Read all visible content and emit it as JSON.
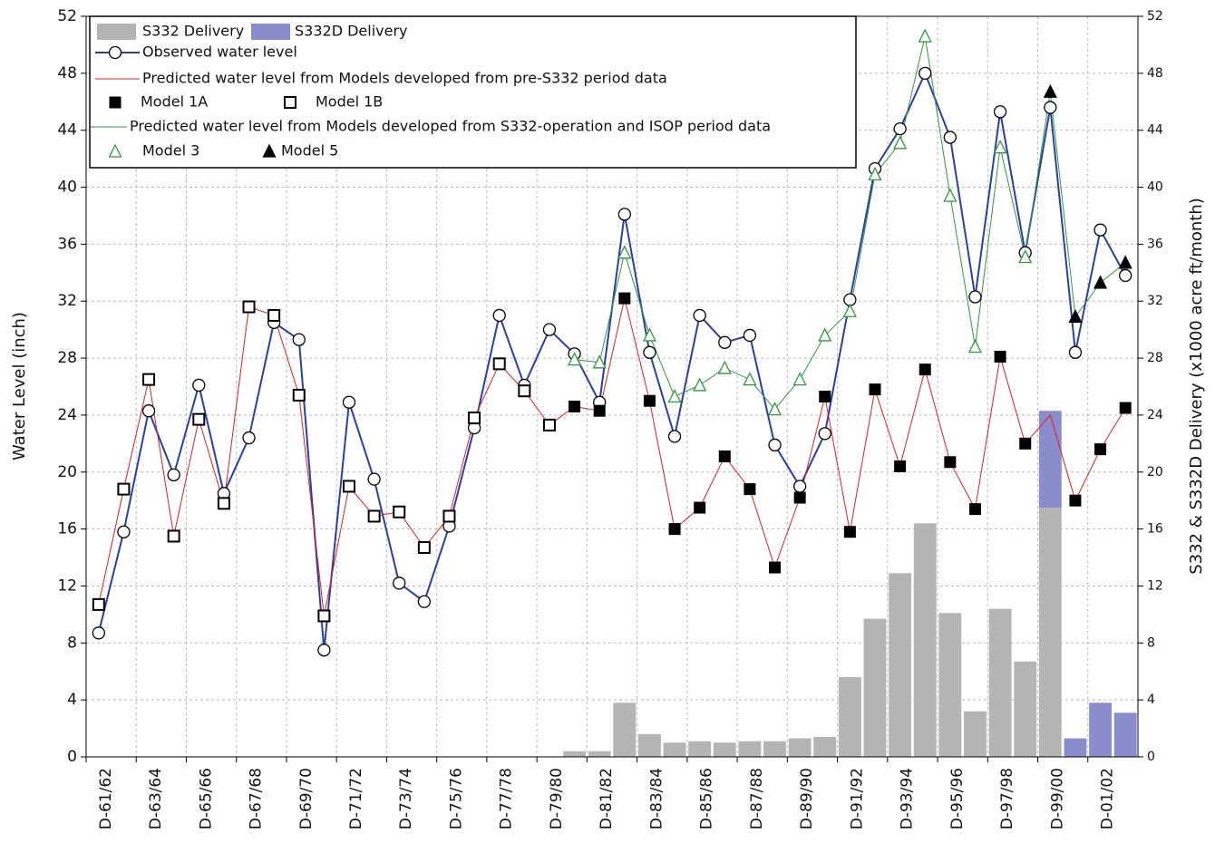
{
  "chart_data": {
    "type": "combo",
    "y_label": "Water Level (inch)",
    "y2_label": "S332 & S332D Delivery (x1000 acre ft/month)",
    "categories": [
      "D-61/62",
      null,
      "D-63/64",
      null,
      "D-65/66",
      null,
      "D-67/68",
      null,
      "D-69/70",
      null,
      "D-71/72",
      null,
      "D-73/74",
      null,
      "D-75/76",
      null,
      "D-77/78",
      null,
      "D-79/80",
      null,
      "D-81/82",
      null,
      "D-83/84",
      null,
      "D-85/86",
      null,
      "D-87/88",
      null,
      "D-89/90",
      null,
      "D-91/92",
      null,
      "D-93/94",
      null,
      "D-95/96",
      null,
      "D-97/98",
      null,
      "D-99/00",
      null,
      "D-01/02",
      null
    ],
    "ylim": [
      0,
      52
    ],
    "yticks": [
      0,
      4,
      8,
      12,
      16,
      20,
      24,
      28,
      32,
      36,
      40,
      44,
      48,
      52
    ],
    "y2lim": [
      0,
      52
    ],
    "y2ticks": [
      0,
      4,
      8,
      12,
      16,
      20,
      24,
      28,
      32,
      36,
      40,
      44,
      48,
      52
    ],
    "grid": true,
    "series": [
      {
        "name": "S332 Delivery",
        "type": "bar",
        "axis": "y2",
        "color": "#b4b4b4",
        "values": [
          null,
          null,
          null,
          null,
          null,
          null,
          null,
          null,
          null,
          null,
          null,
          null,
          null,
          null,
          null,
          null,
          null,
          null,
          null,
          0.4,
          0.4,
          3.8,
          1.6,
          1.0,
          1.1,
          1.0,
          1.1,
          1.1,
          1.3,
          1.4,
          5.6,
          9.7,
          12.9,
          16.4,
          10.1,
          3.2,
          10.4,
          6.7,
          17.5,
          null,
          null,
          null
        ]
      },
      {
        "name": "S332D Delivery",
        "type": "bar",
        "axis": "y2",
        "color": "#8a8ccc",
        "values": [
          null,
          null,
          null,
          null,
          null,
          null,
          null,
          null,
          null,
          null,
          null,
          null,
          null,
          null,
          null,
          null,
          null,
          null,
          null,
          null,
          null,
          null,
          null,
          null,
          null,
          null,
          null,
          null,
          null,
          null,
          null,
          null,
          null,
          null,
          null,
          null,
          null,
          null,
          6.8,
          1.3,
          3.8,
          3.1
        ]
      },
      {
        "name": "Observed water level",
        "type": "line",
        "marker": "circle",
        "color": "#2b3f9e",
        "values": [
          8.7,
          15.8,
          24.3,
          19.8,
          26.1,
          18.5,
          22.4,
          30.5,
          29.3,
          7.5,
          24.9,
          19.5,
          12.2,
          10.9,
          16.2,
          23.1,
          31.0,
          26.1,
          30.0,
          28.3,
          24.9,
          38.1,
          28.4,
          22.5,
          31.0,
          29.1,
          29.6,
          21.9,
          19.0,
          22.7,
          32.1,
          41.3,
          44.1,
          48.0,
          43.5,
          32.3,
          45.3,
          35.4,
          45.6,
          28.4,
          37.0,
          33.8
        ]
      },
      {
        "name": "Predicted water level from Models developed from pre-S332 period data",
        "type": "line",
        "color": "#e02020",
        "values": [
          10.7,
          18.8,
          26.5,
          15.5,
          23.7,
          17.8,
          31.6,
          31.0,
          25.4,
          9.9,
          19.0,
          16.9,
          17.2,
          14.7,
          16.9,
          23.8,
          27.6,
          25.7,
          23.3,
          24.6,
          24.3,
          32.2,
          25.0,
          16.0,
          17.5,
          21.1,
          18.8,
          13.3,
          18.2,
          25.3,
          15.8,
          25.8,
          20.4,
          27.2,
          20.7,
          17.4,
          28.1,
          22.0,
          24.0,
          18.0,
          21.6,
          24.5
        ]
      },
      {
        "name": "Model 1A",
        "type": "scatter",
        "marker": "square-filled",
        "color": "#000000",
        "values": [
          null,
          null,
          null,
          null,
          null,
          null,
          null,
          null,
          null,
          null,
          null,
          null,
          null,
          null,
          null,
          null,
          null,
          null,
          null,
          24.6,
          24.3,
          32.2,
          25.0,
          16.0,
          17.5,
          21.1,
          18.8,
          13.3,
          18.2,
          25.3,
          15.8,
          25.8,
          20.4,
          27.2,
          20.7,
          17.4,
          28.1,
          22.0,
          null,
          18.0,
          21.6,
          24.5
        ]
      },
      {
        "name": "Model 1B",
        "type": "scatter",
        "marker": "square-open",
        "color": "#000000",
        "values": [
          10.7,
          18.8,
          26.5,
          15.5,
          23.7,
          17.8,
          31.6,
          31.0,
          25.4,
          9.9,
          19.0,
          16.9,
          17.2,
          14.7,
          16.9,
          23.8,
          27.6,
          25.7,
          23.3,
          null,
          null,
          null,
          null,
          null,
          null,
          null,
          null,
          null,
          null,
          null,
          null,
          null,
          null,
          null,
          null,
          null,
          null,
          null,
          null,
          null,
          null,
          null
        ]
      },
      {
        "name": "Predicted water level from Models developed from S332-operation and ISOP period data",
        "type": "line",
        "color": "#2e9a3c",
        "values": [
          null,
          null,
          null,
          null,
          null,
          null,
          null,
          null,
          null,
          null,
          null,
          null,
          null,
          null,
          null,
          null,
          null,
          null,
          null,
          27.9,
          27.7,
          35.4,
          29.6,
          25.3,
          26.1,
          27.3,
          26.5,
          24.4,
          26.5,
          29.6,
          31.3,
          40.9,
          43.1,
          50.6,
          39.4,
          28.8,
          42.8,
          35.1,
          46.7,
          30.9,
          33.3,
          34.7
        ]
      },
      {
        "name": "Model 3",
        "type": "scatter",
        "marker": "triangle-open",
        "color": "#000000",
        "values": [
          null,
          null,
          null,
          null,
          null,
          null,
          null,
          null,
          null,
          null,
          null,
          null,
          null,
          null,
          null,
          null,
          null,
          null,
          null,
          27.9,
          27.7,
          35.4,
          29.6,
          25.3,
          26.1,
          27.3,
          26.5,
          24.4,
          26.5,
          29.6,
          31.3,
          40.9,
          43.1,
          50.6,
          39.4,
          28.8,
          42.8,
          35.1,
          null,
          null,
          null,
          null
        ]
      },
      {
        "name": "Model 5",
        "type": "scatter",
        "marker": "triangle-filled",
        "color": "#000000",
        "values": [
          null,
          null,
          null,
          null,
          null,
          null,
          null,
          null,
          null,
          null,
          null,
          null,
          null,
          null,
          null,
          null,
          null,
          null,
          null,
          null,
          null,
          null,
          null,
          null,
          null,
          null,
          null,
          null,
          null,
          null,
          null,
          null,
          null,
          null,
          null,
          null,
          null,
          null,
          46.7,
          30.9,
          33.3,
          34.7
        ]
      }
    ]
  }
}
